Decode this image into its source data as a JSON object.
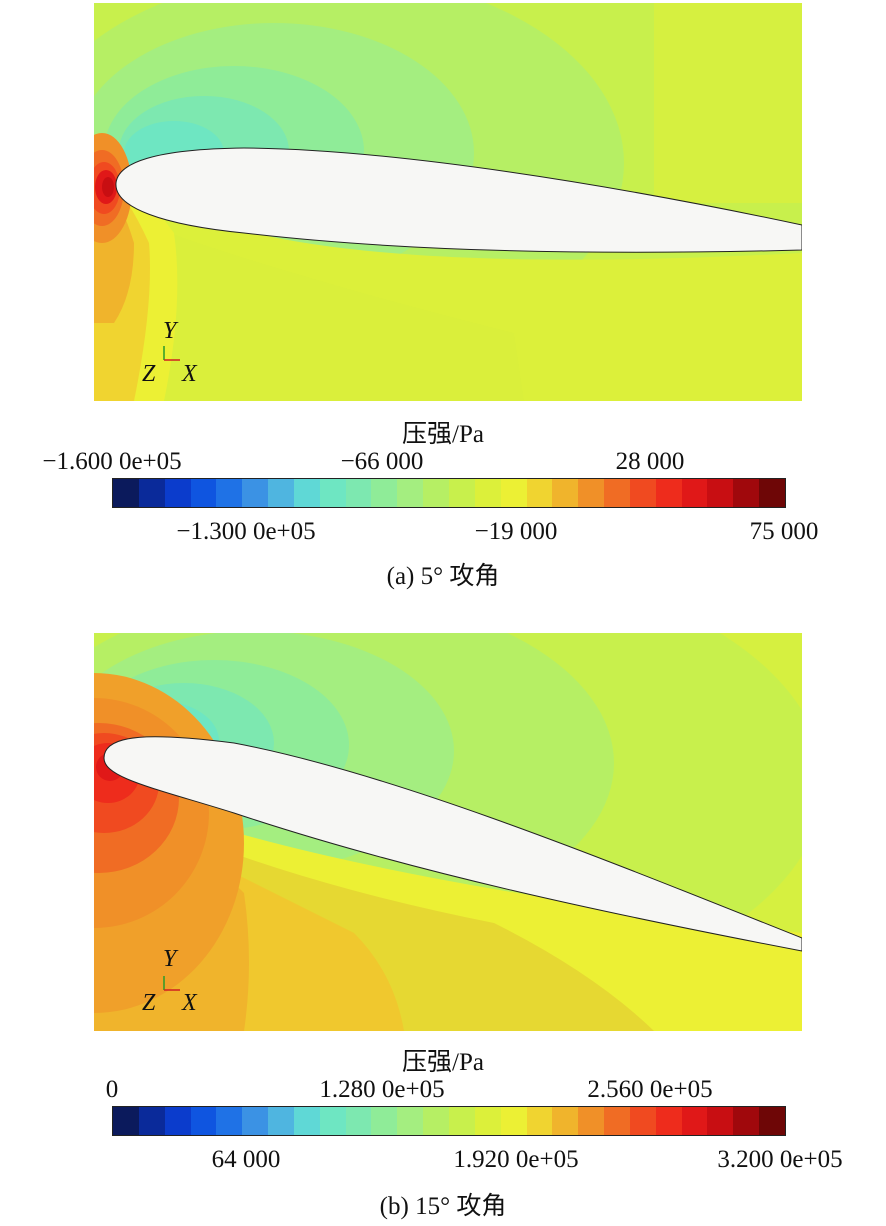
{
  "panels": [
    {
      "colorbar_title": "压强/Pa",
      "upper_ticks": [
        "−1.600 0e+05",
        "−66 000",
        "28 000"
      ],
      "lower_ticks": [
        "−1.300 0e+05",
        "−19 000",
        "75 000"
      ],
      "caption": "(a) 5° 攻角",
      "axes": {
        "y": "Y",
        "z": "Z",
        "x": "X"
      }
    },
    {
      "colorbar_title": "压强/Pa",
      "upper_ticks": [
        "0",
        "1.280 0e+05",
        "2.560 0e+05"
      ],
      "lower_ticks": [
        "64 000",
        "1.920 0e+05",
        "3.200 0e+05"
      ],
      "caption": "(b) 15° 攻角",
      "axes": {
        "y": "Y",
        "z": "Z",
        "x": "X"
      }
    }
  ],
  "colormap": [
    "#0b1a5c",
    "#0a2a9a",
    "#0b3ccc",
    "#0f55e0",
    "#1f72e6",
    "#3b92e4",
    "#4fb5e0",
    "#5fd8d6",
    "#6ee6c2",
    "#7de8b0",
    "#8fec98",
    "#a4ee80",
    "#b6ef64",
    "#c8f04c",
    "#dcf03a",
    "#ecf034",
    "#f0d430",
    "#f0b42c",
    "#f09028",
    "#f06c24",
    "#f04a20",
    "#ee2c1c",
    "#e01818",
    "#c80e12",
    "#a0080c",
    "#6e0606"
  ]
}
